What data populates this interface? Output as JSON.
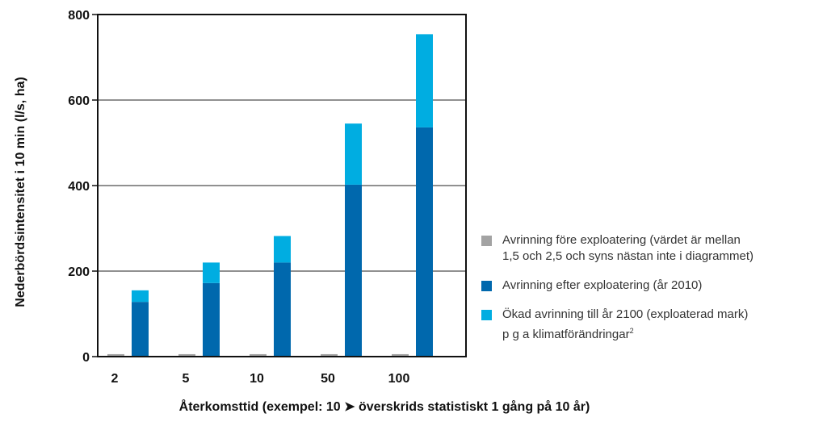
{
  "colors": {
    "before": "#a3a3a3",
    "after": "#0068ad",
    "increase": "#00ade1"
  },
  "chart_data": {
    "type": "bar",
    "stacked": true,
    "title": "",
    "ylabel": "Nederbördsintensitet i 10 min (l/s, ha)",
    "xlabel": "Återkomsttid (exempel: 10 ➤ överskrids statistiskt 1 gång på 10 år)",
    "categories": [
      "2",
      "5",
      "10",
      "50",
      "100"
    ],
    "ylim": [
      0,
      800
    ],
    "yticks": [
      "0",
      "200",
      "400",
      "600",
      "800"
    ],
    "grid": true,
    "legend_position": "right",
    "series": [
      {
        "name": "Avrinning före exploatering (värdet är mellan 1,5 och 2,5 och syns nästan inte i diagrammet)",
        "color_key": "before",
        "values": [
          2,
          2,
          2,
          2,
          2
        ]
      },
      {
        "name": "Avrinning efter exploatering (år 2010)",
        "color_key": "after",
        "values": [
          128,
          172,
          220,
          402,
          536
        ]
      },
      {
        "name": "Ökad avrinning till år 2100 (exploaterad mark) p g a klimatförändringar",
        "color_key": "increase",
        "values": [
          27,
          48,
          62,
          143,
          218
        ]
      }
    ]
  },
  "legend": [
    {
      "line1": "Avrinning före exploatering (värdet är mellan",
      "line2": "1,5 och 2,5 och syns nästan inte i diagrammet)",
      "sup": "",
      "color_key": "before"
    },
    {
      "line1": "Avrinning efter exploatering (år 2010)",
      "line2": "",
      "sup": "",
      "color_key": "after"
    },
    {
      "line1": "Ökad avrinning till år 2100 (exploaterad mark)",
      "line2": "p g a klimatförändringar",
      "sup": "2",
      "color_key": "increase"
    }
  ]
}
